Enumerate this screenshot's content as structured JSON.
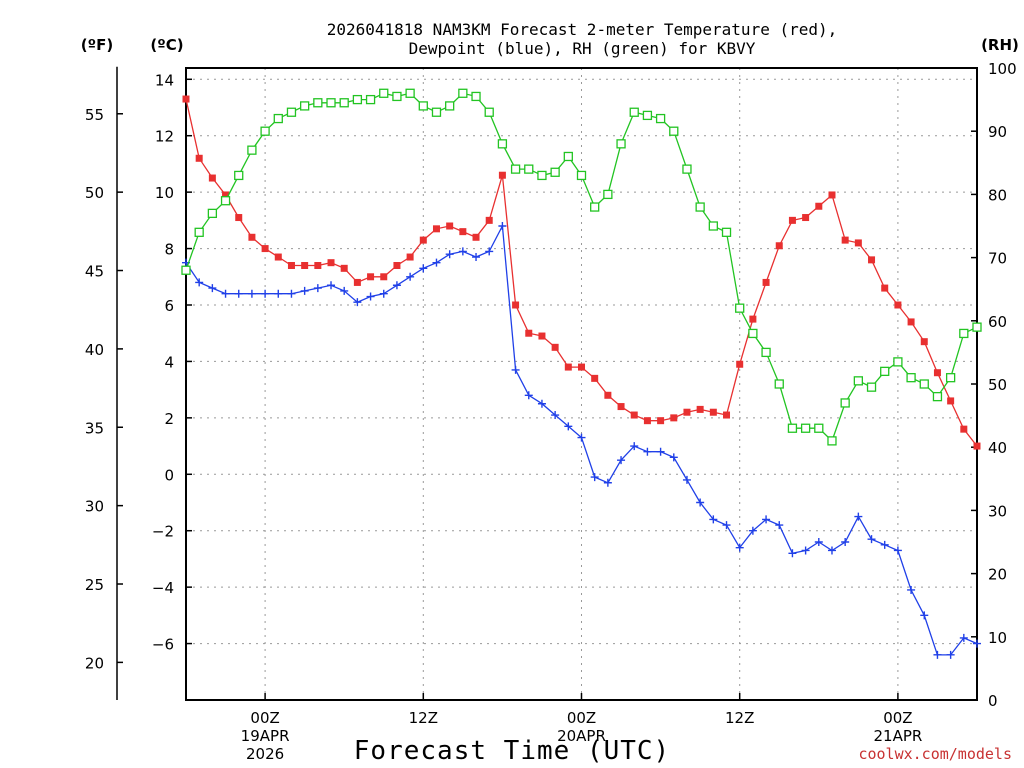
{
  "title_line1": "2026041818 NAM3KM Forecast 2-meter Temperature (red),",
  "title_line2": "Dewpoint (blue), RH (green) for KBVY",
  "credit": "coolwx.com/models",
  "chart_data": {
    "type": "line",
    "xlabel": "Forecast Time (UTC)",
    "x_unit": "forecast hour (from 2026-04-18 18Z)",
    "x_range": [
      0,
      60
    ],
    "x_ticks": [
      {
        "hour": 6,
        "label1": "00Z",
        "label2": "19APR",
        "label3": "2026"
      },
      {
        "hour": 18,
        "label1": "12Z",
        "label2": "",
        "label3": ""
      },
      {
        "hour": 30,
        "label1": "00Z",
        "label2": "20APR",
        "label3": ""
      },
      {
        "hour": 42,
        "label1": "12Z",
        "label2": "",
        "label3": ""
      },
      {
        "hour": 54,
        "label1": "00Z",
        "label2": "21APR",
        "label3": ""
      }
    ],
    "left_axis_c": {
      "label": "(ºC)",
      "range": [
        -8,
        14.4
      ],
      "ticks": [
        14,
        12,
        10,
        8,
        6,
        4,
        2,
        0,
        -2,
        -4,
        -6
      ]
    },
    "left_axis_f": {
      "label": "(ºF)",
      "ticks": [
        55,
        50,
        45,
        40,
        35,
        30,
        25,
        20
      ]
    },
    "right_axis_rh": {
      "label": "(RH)",
      "range": [
        0,
        100
      ],
      "ticks": [
        100,
        90,
        80,
        70,
        60,
        50,
        40,
        30,
        20,
        10,
        0
      ]
    },
    "series": [
      {
        "name": "2-meter Temperature",
        "unit": "C",
        "color": "#e83030",
        "marker": "filled-square",
        "values": [
          13.3,
          11.2,
          10.5,
          9.9,
          9.1,
          8.4,
          8.0,
          7.7,
          7.4,
          7.4,
          7.4,
          7.5,
          7.3,
          6.8,
          7.0,
          7.0,
          7.4,
          7.7,
          8.3,
          8.7,
          8.8,
          8.6,
          8.4,
          9.0,
          10.6,
          6.0,
          5.0,
          4.9,
          4.5,
          3.8,
          3.8,
          3.4,
          2.8,
          2.4,
          2.1,
          1.9,
          1.9,
          2.0,
          2.2,
          2.3,
          2.2,
          2.1,
          3.9,
          5.5,
          6.8,
          8.1,
          9.0,
          9.1,
          9.5,
          9.9,
          8.3,
          8.2,
          7.6,
          6.6,
          6.0,
          5.4,
          4.7,
          3.6,
          2.6,
          1.6,
          1.0
        ]
      },
      {
        "name": "Dewpoint",
        "unit": "C",
        "color": "#2040e8",
        "marker": "plus",
        "values": [
          7.5,
          6.8,
          6.6,
          6.4,
          6.4,
          6.4,
          6.4,
          6.4,
          6.4,
          6.5,
          6.6,
          6.7,
          6.5,
          6.1,
          6.3,
          6.4,
          6.7,
          7.0,
          7.3,
          7.5,
          7.8,
          7.9,
          7.7,
          7.9,
          8.8,
          3.7,
          2.8,
          2.5,
          2.1,
          1.7,
          1.3,
          -0.1,
          -0.3,
          0.5,
          1.0,
          0.8,
          0.8,
          0.6,
          -0.2,
          -1.0,
          -1.6,
          -1.8,
          -2.6,
          -2.0,
          -1.6,
          -1.8,
          -2.8,
          -2.7,
          -2.4,
          -2.7,
          -2.4,
          -1.5,
          -2.3,
          -2.5,
          -2.7,
          -4.1,
          -5.0,
          -6.4,
          -6.4,
          -5.8,
          -6.0
        ]
      },
      {
        "name": "RH",
        "unit": "%",
        "color": "#22c422",
        "marker": "open-square",
        "values": [
          68,
          74,
          77,
          79,
          83,
          87,
          90,
          92,
          93,
          94,
          94.5,
          94.5,
          94.5,
          95,
          95,
          96,
          95.5,
          96,
          94,
          93,
          94,
          96,
          95.5,
          93,
          88,
          84,
          84,
          83,
          83.5,
          86,
          83,
          78,
          80,
          88,
          93,
          92.5,
          92,
          90,
          84,
          78,
          75,
          74,
          62,
          58,
          55,
          50,
          43,
          43,
          43,
          41,
          47,
          50.5,
          49.5,
          52,
          53.5,
          51,
          50,
          48,
          51,
          58,
          59
        ]
      }
    ]
  }
}
